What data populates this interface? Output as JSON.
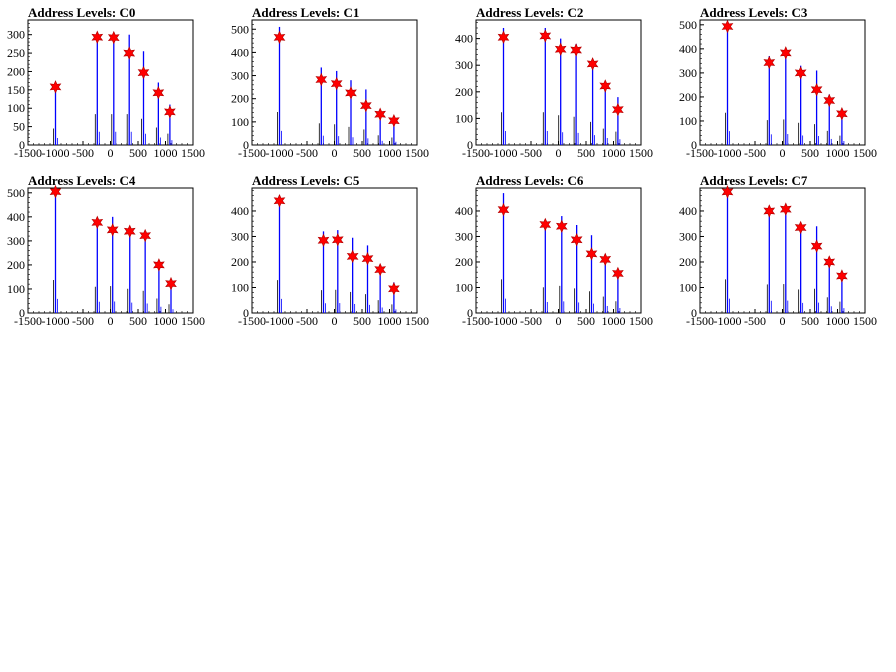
{
  "chart_data": [
    {
      "type": "bar",
      "title": "Address Levels: C0",
      "xlim": [
        -1500,
        1500
      ],
      "ylim": [
        0,
        340
      ],
      "xticks": [
        -1500,
        -1000,
        -500,
        0,
        500,
        1000,
        1500
      ],
      "yticks": [
        0,
        50,
        100,
        150,
        200,
        250,
        300
      ],
      "series": [
        {
          "values": [
            {
              "x": -1000,
              "y": 160
            },
            {
              "x": -240,
              "y": 300
            },
            {
              "x": 60,
              "y": 300
            },
            {
              "x": 340,
              "y": 300
            },
            {
              "x": 600,
              "y": 255
            },
            {
              "x": 870,
              "y": 170
            },
            {
              "x": 1080,
              "y": 110
            }
          ]
        }
      ],
      "peaks": [
        {
          "x": -1000,
          "y": 158
        },
        {
          "x": -240,
          "y": 293
        },
        {
          "x": 60,
          "y": 292
        },
        {
          "x": 340,
          "y": 250
        },
        {
          "x": 600,
          "y": 197
        },
        {
          "x": 870,
          "y": 142
        },
        {
          "x": 1080,
          "y": 90
        }
      ]
    },
    {
      "type": "bar",
      "title": "Address Levels: C1",
      "xlim": [
        -1500,
        1500
      ],
      "ylim": [
        0,
        540
      ],
      "xticks": [
        -1500,
        -1000,
        -500,
        0,
        500,
        1000,
        1500
      ],
      "yticks": [
        0,
        100,
        200,
        300,
        400,
        500
      ],
      "series": [
        {
          "values": [
            {
              "x": -1000,
              "y": 510
            },
            {
              "x": -240,
              "y": 335
            },
            {
              "x": 40,
              "y": 320
            },
            {
              "x": 300,
              "y": 280
            },
            {
              "x": 570,
              "y": 240
            },
            {
              "x": 830,
              "y": 150
            },
            {
              "x": 1080,
              "y": 115
            }
          ]
        }
      ],
      "peaks": [
        {
          "x": -1000,
          "y": 465
        },
        {
          "x": -240,
          "y": 283
        },
        {
          "x": 40,
          "y": 265
        },
        {
          "x": 300,
          "y": 225
        },
        {
          "x": 570,
          "y": 170
        },
        {
          "x": 830,
          "y": 133
        },
        {
          "x": 1080,
          "y": 105
        }
      ]
    },
    {
      "type": "bar",
      "title": "Address Levels: C2",
      "xlim": [
        -1500,
        1500
      ],
      "ylim": [
        0,
        470
      ],
      "xticks": [
        -1500,
        -1000,
        -500,
        0,
        500,
        1000,
        1500
      ],
      "yticks": [
        0,
        100,
        200,
        300,
        400
      ],
      "series": [
        {
          "values": [
            {
              "x": -1000,
              "y": 440
            },
            {
              "x": -240,
              "y": 440
            },
            {
              "x": 40,
              "y": 400
            },
            {
              "x": 320,
              "y": 380
            },
            {
              "x": 620,
              "y": 310
            },
            {
              "x": 850,
              "y": 220
            },
            {
              "x": 1080,
              "y": 180
            }
          ]
        }
      ],
      "peaks": [
        {
          "x": -1000,
          "y": 405
        },
        {
          "x": -240,
          "y": 410
        },
        {
          "x": 40,
          "y": 360
        },
        {
          "x": 320,
          "y": 357
        },
        {
          "x": 620,
          "y": 305
        },
        {
          "x": 850,
          "y": 222
        },
        {
          "x": 1080,
          "y": 133
        }
      ]
    },
    {
      "type": "bar",
      "title": "Address Levels: C3",
      "xlim": [
        -1500,
        1500
      ],
      "ylim": [
        0,
        520
      ],
      "xticks": [
        -1500,
        -1000,
        -500,
        0,
        500,
        1000,
        1500
      ],
      "yticks": [
        0,
        100,
        200,
        300,
        400,
        500
      ],
      "series": [
        {
          "values": [
            {
              "x": -1000,
              "y": 480
            },
            {
              "x": -240,
              "y": 370
            },
            {
              "x": 60,
              "y": 380
            },
            {
              "x": 330,
              "y": 330
            },
            {
              "x": 620,
              "y": 310
            },
            {
              "x": 850,
              "y": 210
            },
            {
              "x": 1080,
              "y": 140
            }
          ]
        }
      ],
      "peaks": [
        {
          "x": -1000,
          "y": 493
        },
        {
          "x": -240,
          "y": 343
        },
        {
          "x": 60,
          "y": 383
        },
        {
          "x": 330,
          "y": 300
        },
        {
          "x": 620,
          "y": 230
        },
        {
          "x": 850,
          "y": 185
        },
        {
          "x": 1080,
          "y": 130
        }
      ]
    },
    {
      "type": "bar",
      "title": "Address Levels: C4",
      "xlim": [
        -1500,
        1500
      ],
      "ylim": [
        0,
        520
      ],
      "xticks": [
        -1500,
        -1000,
        -500,
        0,
        500,
        1000,
        1500
      ],
      "yticks": [
        0,
        100,
        200,
        300,
        400,
        500
      ],
      "series": [
        {
          "values": [
            {
              "x": -1000,
              "y": 490
            },
            {
              "x": -240,
              "y": 390
            },
            {
              "x": 40,
              "y": 400
            },
            {
              "x": 350,
              "y": 360
            },
            {
              "x": 630,
              "y": 330
            },
            {
              "x": 880,
              "y": 215
            },
            {
              "x": 1100,
              "y": 130
            }
          ]
        }
      ],
      "peaks": [
        {
          "x": -1000,
          "y": 505
        },
        {
          "x": -240,
          "y": 377
        },
        {
          "x": 40,
          "y": 346
        },
        {
          "x": 350,
          "y": 340
        },
        {
          "x": 630,
          "y": 322
        },
        {
          "x": 880,
          "y": 200
        },
        {
          "x": 1100,
          "y": 122
        }
      ]
    },
    {
      "type": "bar",
      "title": "Address Levels: C5",
      "xlim": [
        -1500,
        1500
      ],
      "ylim": [
        0,
        490
      ],
      "xticks": [
        -1500,
        -1000,
        -500,
        0,
        500,
        1000,
        1500
      ],
      "yticks": [
        0,
        100,
        200,
        300,
        400
      ],
      "series": [
        {
          "values": [
            {
              "x": -1000,
              "y": 460
            },
            {
              "x": -200,
              "y": 320
            },
            {
              "x": 60,
              "y": 325
            },
            {
              "x": 330,
              "y": 295
            },
            {
              "x": 600,
              "y": 265
            },
            {
              "x": 830,
              "y": 180
            },
            {
              "x": 1080,
              "y": 120
            }
          ]
        }
      ],
      "peaks": [
        {
          "x": -1000,
          "y": 440
        },
        {
          "x": -200,
          "y": 285
        },
        {
          "x": 60,
          "y": 287
        },
        {
          "x": 330,
          "y": 222
        },
        {
          "x": 600,
          "y": 213
        },
        {
          "x": 830,
          "y": 170
        },
        {
          "x": 1080,
          "y": 95
        }
      ]
    },
    {
      "type": "bar",
      "title": "Address Levels: C6",
      "xlim": [
        -1500,
        1500
      ],
      "ylim": [
        0,
        490
      ],
      "xticks": [
        -1500,
        -1000,
        -500,
        0,
        500,
        1000,
        1500
      ],
      "yticks": [
        0,
        100,
        200,
        300,
        400
      ],
      "series": [
        {
          "values": [
            {
              "x": -1000,
              "y": 470
            },
            {
              "x": -240,
              "y": 360
            },
            {
              "x": 60,
              "y": 380
            },
            {
              "x": 330,
              "y": 345
            },
            {
              "x": 600,
              "y": 305
            },
            {
              "x": 850,
              "y": 230
            },
            {
              "x": 1080,
              "y": 165
            }
          ]
        }
      ],
      "peaks": [
        {
          "x": -1000,
          "y": 405
        },
        {
          "x": -240,
          "y": 347
        },
        {
          "x": 60,
          "y": 340
        },
        {
          "x": 330,
          "y": 287
        },
        {
          "x": 600,
          "y": 232
        },
        {
          "x": 850,
          "y": 210
        },
        {
          "x": 1080,
          "y": 155
        }
      ]
    },
    {
      "type": "bar",
      "title": "Address Levels: C7",
      "xlim": [
        -1500,
        1500
      ],
      "ylim": [
        0,
        490
      ],
      "xticks": [
        -1500,
        -1000,
        -500,
        0,
        500,
        1000,
        1500
      ],
      "yticks": [
        0,
        100,
        200,
        300,
        400
      ],
      "series": [
        {
          "values": [
            {
              "x": -1000,
              "y": 470
            },
            {
              "x": -240,
              "y": 400
            },
            {
              "x": 60,
              "y": 405
            },
            {
              "x": 330,
              "y": 330
            },
            {
              "x": 620,
              "y": 340
            },
            {
              "x": 850,
              "y": 220
            },
            {
              "x": 1080,
              "y": 160
            }
          ]
        }
      ],
      "peaks": [
        {
          "x": -1000,
          "y": 475
        },
        {
          "x": -240,
          "y": 400
        },
        {
          "x": 60,
          "y": 407
        },
        {
          "x": 330,
          "y": 335
        },
        {
          "x": 620,
          "y": 262
        },
        {
          "x": 850,
          "y": 200
        },
        {
          "x": 1080,
          "y": 145
        }
      ]
    }
  ],
  "colors": {
    "histogram": "#0000ff",
    "outline": "#000000",
    "peak_marker": "#ff0000"
  }
}
